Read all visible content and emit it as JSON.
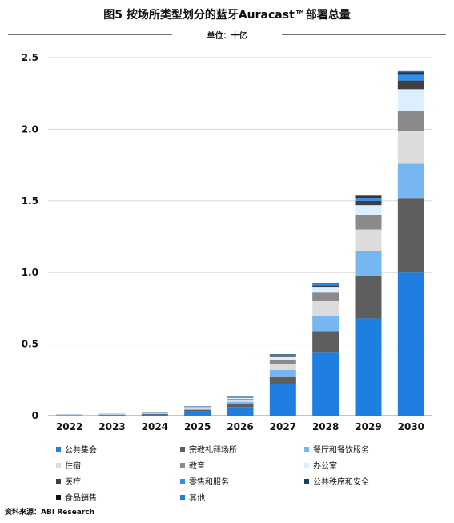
{
  "title": "图5 按场所类型划分的蓝牙Auracast™部署总量",
  "unit_label": "单位：十亿",
  "source": "资料来源：ABI Research",
  "chart_data": {
    "type": "bar",
    "stacked": true,
    "categories": [
      "2022",
      "2023",
      "2024",
      "2025",
      "2026",
      "2027",
      "2028",
      "2029",
      "2030"
    ],
    "ylim": [
      0,
      2.5
    ],
    "yticks": [
      "0",
      "0.5",
      "1.0",
      "1.5",
      "2.0",
      "2.5"
    ],
    "grid": true,
    "legend_position": "bottom",
    "series": [
      {
        "name": "公共集会",
        "color": "#1f7fe0",
        "values": [
          0.002,
          0.004,
          0.008,
          0.03,
          0.06,
          0.22,
          0.44,
          0.68,
          1.0
        ]
      },
      {
        "name": "宗教礼拜场所",
        "color": "#5e5e5e",
        "values": [
          0.001,
          0.002,
          0.004,
          0.01,
          0.02,
          0.05,
          0.15,
          0.3,
          0.52
        ]
      },
      {
        "name": "餐厅和餐饮服务",
        "color": "#76b7f2",
        "values": [
          0.001,
          0.002,
          0.003,
          0.006,
          0.015,
          0.05,
          0.11,
          0.17,
          0.24
        ]
      },
      {
        "name": "住宿",
        "color": "#dcdcdc",
        "values": [
          0.001,
          0.001,
          0.002,
          0.005,
          0.012,
          0.04,
          0.1,
          0.15,
          0.23
        ]
      },
      {
        "name": "教育",
        "color": "#8a8a8a",
        "values": [
          0.001,
          0.001,
          0.002,
          0.005,
          0.01,
          0.03,
          0.06,
          0.1,
          0.14
        ]
      },
      {
        "name": "办公室",
        "color": "#dcefff",
        "values": [
          0.001,
          0.001,
          0.002,
          0.004,
          0.008,
          0.02,
          0.04,
          0.07,
          0.15
        ]
      },
      {
        "name": "医疗",
        "color": "#3f3f3f",
        "values": [
          0.0005,
          0.0005,
          0.001,
          0.002,
          0.003,
          0.008,
          0.01,
          0.03,
          0.06
        ]
      },
      {
        "name": "零售和服务",
        "color": "#2d8ff0",
        "values": [
          0.0005,
          0.0005,
          0.001,
          0.002,
          0.002,
          0.005,
          0.008,
          0.02,
          0.04
        ]
      },
      {
        "name": "公共秩序和安全",
        "color": "#1a3d6b",
        "values": [
          0.0003,
          0.0003,
          0.0005,
          0.001,
          0.001,
          0.003,
          0.004,
          0.008,
          0.01
        ]
      },
      {
        "name": "食品销售",
        "color": "#111111",
        "values": [
          0.0002,
          0.0002,
          0.0003,
          0.0005,
          0.001,
          0.002,
          0.003,
          0.005,
          0.008
        ]
      },
      {
        "name": "其他",
        "color": "#1f7fe0",
        "values": [
          0.0002,
          0.0002,
          0.0003,
          0.0005,
          0.001,
          0.002,
          0.003,
          0.005,
          0.008
        ]
      }
    ]
  }
}
